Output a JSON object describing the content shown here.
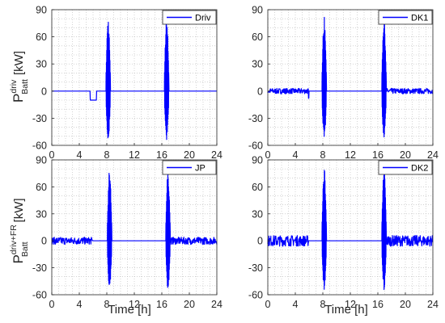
{
  "figure": {
    "ylabel_top": {
      "main": "P",
      "sup": "driv",
      "sub": "Batt",
      "unit": "[kW]"
    },
    "ylabel_bottom": {
      "main": "P",
      "sup": "driv+FR",
      "sub": "Batt",
      "unit": "[kW]"
    },
    "xlabel": "Time [h]",
    "line_color": "#0000ff"
  },
  "chart_data": [
    {
      "type": "line",
      "legend": "Driv",
      "legend_position": "top-right",
      "xlim": [
        0,
        24
      ],
      "ylim": [
        -60,
        90
      ],
      "xticks": [
        0,
        4,
        8,
        12,
        16,
        20,
        24
      ],
      "yticks": [
        -60,
        -30,
        0,
        30,
        60,
        90
      ],
      "grid": "minor-dotted",
      "idle_level": 0,
      "noise_amplitude": 0,
      "noise_window": [
        0,
        0
      ],
      "step": {
        "start": 5.6,
        "end": 6.5,
        "value": -10
      },
      "bursts": [
        {
          "start": 7.9,
          "end": 8.5,
          "max": 82,
          "min": -55
        },
        {
          "start": 16.4,
          "end": 17.0,
          "max": 82,
          "min": -55
        }
      ]
    },
    {
      "type": "line",
      "legend": "DK1",
      "legend_position": "top-right",
      "xlim": [
        0,
        24
      ],
      "ylim": [
        -60,
        90
      ],
      "xticks": [
        0,
        4,
        8,
        12,
        16,
        20,
        24
      ],
      "yticks": [
        -60,
        -30,
        0,
        30,
        60,
        90
      ],
      "grid": "minor-dotted",
      "idle_level": 0,
      "noise_amplitude": 3,
      "noise_window": [
        0,
        5.9
      ],
      "noise_window2": [
        17.2,
        24
      ],
      "step": {
        "start": 5.9,
        "end": 6.0,
        "value": -8
      },
      "bursts": [
        {
          "start": 7.9,
          "end": 8.5,
          "max": 83,
          "min": -55
        },
        {
          "start": 16.6,
          "end": 17.2,
          "max": 83,
          "min": -55
        }
      ]
    },
    {
      "type": "line",
      "legend": "JP",
      "legend_position": "top-right",
      "xlim": [
        0,
        24
      ],
      "ylim": [
        -60,
        90
      ],
      "xticks": [
        0,
        4,
        8,
        12,
        16,
        20,
        24
      ],
      "yticks": [
        -60,
        -30,
        0,
        30,
        60,
        90
      ],
      "grid": "minor-dotted",
      "idle_level": 0,
      "noise_amplitude": 4,
      "noise_window": [
        0,
        5.9
      ],
      "noise_window2": [
        17.2,
        24
      ],
      "step": null,
      "bursts": [
        {
          "start": 8.1,
          "end": 8.7,
          "max": 80,
          "min": -55
        },
        {
          "start": 16.6,
          "end": 17.2,
          "max": 80,
          "min": -55
        }
      ]
    },
    {
      "type": "line",
      "legend": "DK2",
      "legend_position": "top-right",
      "xlim": [
        0,
        24
      ],
      "ylim": [
        -60,
        90
      ],
      "xticks": [
        0,
        4,
        8,
        12,
        16,
        20,
        24
      ],
      "yticks": [
        -60,
        -30,
        0,
        30,
        60,
        90
      ],
      "grid": "minor-dotted",
      "idle_level": 0,
      "noise_amplitude": 6,
      "noise_window": [
        0,
        5.9
      ],
      "noise_window2": [
        17.2,
        24
      ],
      "step": null,
      "bursts": [
        {
          "start": 7.9,
          "end": 8.5,
          "max": 84,
          "min": -55
        },
        {
          "start": 16.6,
          "end": 17.2,
          "max": 84,
          "min": -55
        }
      ]
    }
  ]
}
